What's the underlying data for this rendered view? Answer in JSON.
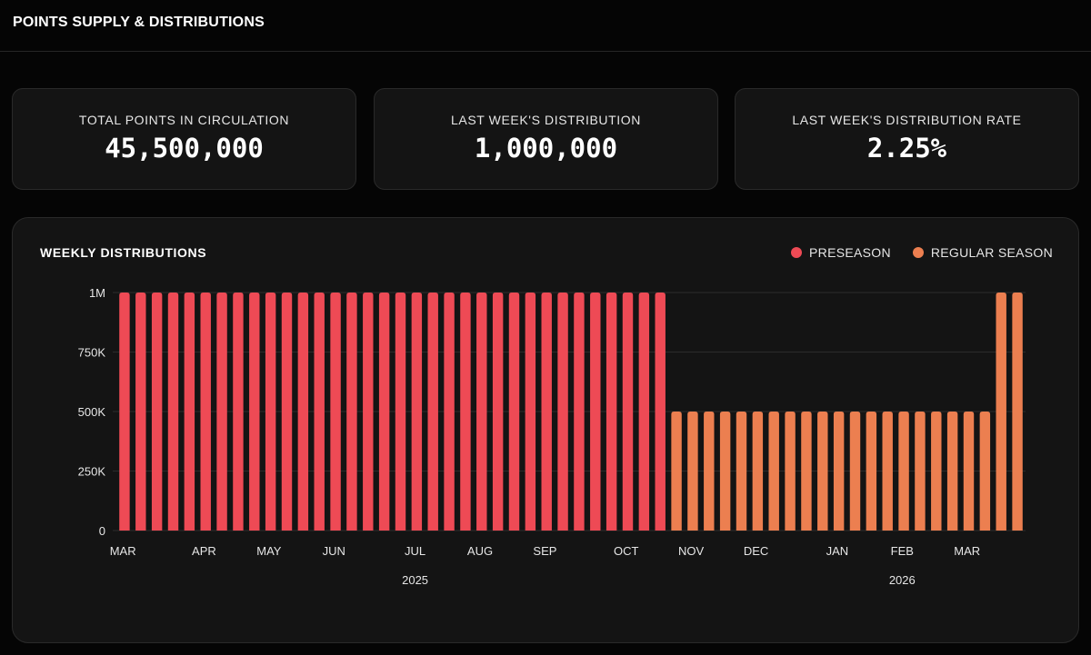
{
  "header": {
    "title": "POINTS SUPPLY & DISTRIBUTIONS"
  },
  "stats": [
    {
      "label": "TOTAL POINTS IN CIRCULATION",
      "value": "45,500,000"
    },
    {
      "label": "LAST WEEK'S DISTRIBUTION",
      "value": "1,000,000"
    },
    {
      "label": "LAST WEEK'S DISTRIBUTION RATE",
      "value": "2.25%"
    }
  ],
  "colors": {
    "preseason": "#ee4a55",
    "regular": "#ec7f50",
    "grid": "#2c2c2c"
  },
  "chart_data": {
    "type": "bar",
    "title": "WEEKLY DISTRIBUTIONS",
    "legend": [
      {
        "name": "PRESEASON",
        "color": "#ee4a55"
      },
      {
        "name": "REGULAR SEASON",
        "color": "#ec7f50"
      }
    ],
    "legend_position": "top-right",
    "ylim": [
      0,
      1000000
    ],
    "yticks": [
      0,
      250000,
      500000,
      750000,
      1000000
    ],
    "ytick_labels": [
      "0",
      "250K",
      "500K",
      "750K",
      "1M"
    ],
    "grid": true,
    "weeks": 56,
    "series": [
      {
        "name": "PRESEASON",
        "color": "#ee4a55",
        "start_index": 0,
        "values": [
          1000000,
          1000000,
          1000000,
          1000000,
          1000000,
          1000000,
          1000000,
          1000000,
          1000000,
          1000000,
          1000000,
          1000000,
          1000000,
          1000000,
          1000000,
          1000000,
          1000000,
          1000000,
          1000000,
          1000000,
          1000000,
          1000000,
          1000000,
          1000000,
          1000000,
          1000000,
          1000000,
          1000000,
          1000000,
          1000000,
          1000000,
          1000000,
          1000000,
          1000000
        ]
      },
      {
        "name": "REGULAR SEASON",
        "color": "#ec7f50",
        "start_index": 34,
        "values": [
          500000,
          500000,
          500000,
          500000,
          500000,
          500000,
          500000,
          500000,
          500000,
          500000,
          500000,
          500000,
          500000,
          500000,
          500000,
          500000,
          500000,
          500000,
          500000,
          500000,
          1000000,
          1000000
        ]
      }
    ],
    "month_labels": [
      {
        "label": "MAR",
        "week": 0.4
      },
      {
        "label": "APR",
        "week": 5.4
      },
      {
        "label": "MAY",
        "week": 9.4
      },
      {
        "label": "JUN",
        "week": 13.4
      },
      {
        "label": "JUL",
        "week": 18.4
      },
      {
        "label": "AUG",
        "week": 22.4
      },
      {
        "label": "SEP",
        "week": 26.4
      },
      {
        "label": "OCT",
        "week": 31.4
      },
      {
        "label": "NOV",
        "week": 35.4
      },
      {
        "label": "DEC",
        "week": 39.4
      },
      {
        "label": "JAN",
        "week": 44.4
      },
      {
        "label": "FEB",
        "week": 48.4
      },
      {
        "label": "MAR",
        "week": 52.4
      }
    ],
    "year_labels": [
      {
        "label": "2025",
        "week": 18.4
      },
      {
        "label": "2026",
        "week": 48.4
      }
    ]
  }
}
